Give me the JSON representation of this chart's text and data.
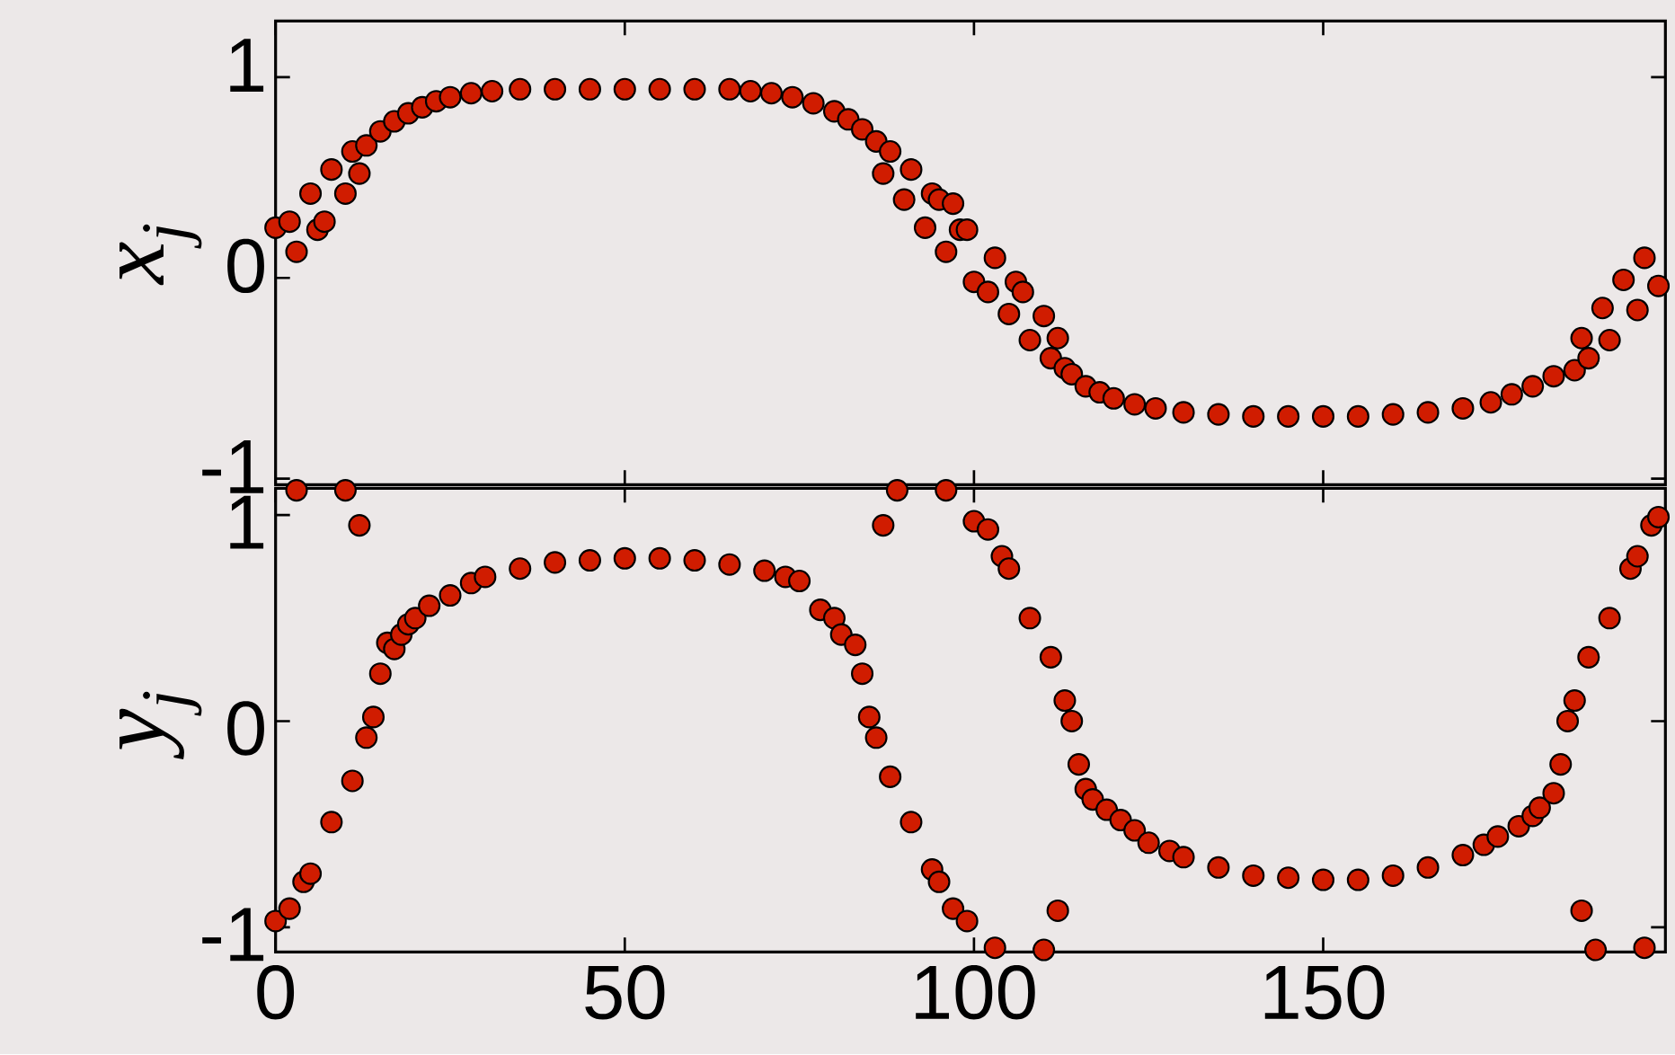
{
  "chart_data": [
    {
      "type": "scatter",
      "ylabel": "x$_{j}$",
      "color": "#d01c00",
      "marker": "circle",
      "xlim": [
        0,
        199
      ],
      "ylim": [
        -1.03,
        1.28
      ],
      "xticks": [
        0,
        50,
        100,
        150
      ],
      "yticks": [
        -1,
        0,
        1
      ],
      "tick_labels": "y",
      "x": [
        0,
        2,
        3,
        5,
        6,
        7,
        8,
        10,
        11,
        12,
        13,
        15,
        17,
        19,
        21,
        23,
        25,
        28,
        31,
        35,
        40,
        45,
        50,
        55,
        60,
        65,
        68,
        71,
        74,
        77,
        80,
        82,
        84,
        86,
        87,
        88,
        90,
        91,
        93,
        94,
        95,
        96,
        97,
        98,
        99,
        100,
        102,
        103,
        105,
        106,
        107,
        108,
        110,
        111,
        112,
        113,
        114,
        116,
        118,
        120,
        123,
        126,
        130,
        135,
        140,
        145,
        150,
        155,
        160,
        165,
        170,
        174,
        177,
        180,
        183,
        186,
        187,
        188,
        190,
        191,
        193,
        195,
        196,
        198
      ],
      "values": [
        0.25,
        0.28,
        0.13,
        0.42,
        0.24,
        0.28,
        0.54,
        0.42,
        0.63,
        0.52,
        0.66,
        0.73,
        0.78,
        0.82,
        0.85,
        0.88,
        0.9,
        0.92,
        0.93,
        0.94,
        0.94,
        0.94,
        0.94,
        0.94,
        0.94,
        0.94,
        0.93,
        0.92,
        0.9,
        0.87,
        0.83,
        0.79,
        0.74,
        0.68,
        0.52,
        0.63,
        0.39,
        0.54,
        0.25,
        0.42,
        0.39,
        0.13,
        0.37,
        0.24,
        0.24,
        -0.02,
        -0.07,
        0.1,
        -0.18,
        -0.02,
        -0.07,
        -0.31,
        -0.19,
        -0.4,
        -0.3,
        -0.45,
        -0.48,
        -0.54,
        -0.57,
        -0.6,
        -0.63,
        -0.65,
        -0.67,
        -0.68,
        -0.69,
        -0.69,
        -0.69,
        -0.69,
        -0.68,
        -0.67,
        -0.65,
        -0.62,
        -0.58,
        -0.54,
        -0.49,
        -0.46,
        -0.3,
        -0.4,
        -0.15,
        -0.31,
        -0.01,
        -0.16,
        0.1,
        -0.04
      ]
    },
    {
      "type": "scatter",
      "ylabel": "y$_{j}$",
      "color": "#d01c00",
      "marker": "circle",
      "xlim": [
        0,
        199
      ],
      "ylim": [
        -1.12,
        1.13
      ],
      "xticks": [
        0,
        50,
        100,
        150
      ],
      "yticks": [
        -1,
        0,
        1
      ],
      "x": [
        0,
        2,
        3,
        4,
        5,
        8,
        10,
        11,
        12,
        13,
        14,
        15,
        16,
        17,
        18,
        19,
        20,
        22,
        25,
        28,
        30,
        35,
        40,
        45,
        50,
        55,
        60,
        65,
        70,
        73,
        75,
        78,
        80,
        81,
        83,
        84,
        85,
        86,
        87,
        88,
        89,
        91,
        94,
        95,
        96,
        97,
        99,
        100,
        102,
        103,
        104,
        105,
        108,
        110,
        111,
        112,
        113,
        114,
        115,
        116,
        117,
        119,
        121,
        123,
        125,
        128,
        130,
        135,
        140,
        145,
        150,
        155,
        160,
        165,
        170,
        173,
        175,
        178,
        180,
        181,
        183,
        184,
        185,
        186,
        187,
        188,
        189,
        191,
        194,
        195,
        196,
        197,
        198
      ],
      "values": [
        -0.97,
        -0.91,
        1.12,
        -0.78,
        -0.74,
        -0.49,
        1.12,
        -0.29,
        0.95,
        -0.08,
        0.02,
        0.23,
        0.38,
        0.35,
        0.42,
        0.47,
        0.5,
        0.56,
        0.61,
        0.67,
        0.7,
        0.74,
        0.77,
        0.78,
        0.79,
        0.79,
        0.78,
        0.76,
        0.73,
        0.7,
        0.68,
        0.54,
        0.5,
        0.42,
        0.37,
        0.23,
        0.02,
        -0.08,
        0.95,
        -0.27,
        1.12,
        -0.49,
        -0.72,
        -0.78,
        1.12,
        -0.91,
        -0.97,
        0.97,
        0.93,
        -1.1,
        0.8,
        0.74,
        0.5,
        -1.11,
        0.31,
        -0.92,
        0.1,
        0.0,
        -0.21,
        -0.33,
        -0.38,
        -0.43,
        -0.48,
        -0.53,
        -0.59,
        -0.63,
        -0.66,
        -0.71,
        -0.75,
        -0.76,
        -0.77,
        -0.77,
        -0.75,
        -0.71,
        -0.65,
        -0.6,
        -0.56,
        -0.51,
        -0.46,
        -0.42,
        -0.35,
        -0.21,
        0.0,
        0.1,
        -0.92,
        0.31,
        -1.11,
        0.5,
        0.74,
        0.8,
        -1.1,
        0.95,
        0.99
      ]
    }
  ]
}
